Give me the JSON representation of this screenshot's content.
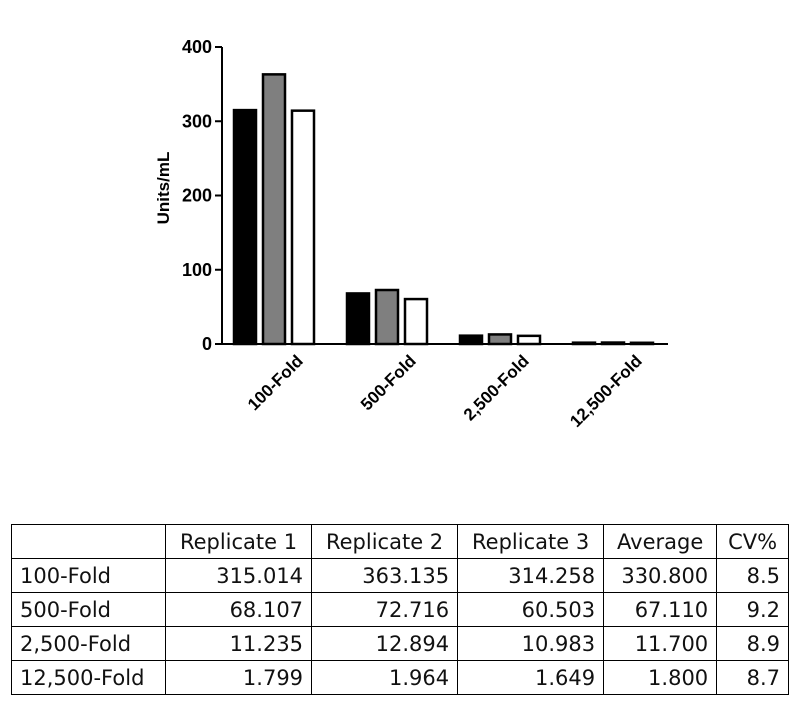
{
  "chart_data": {
    "type": "bar",
    "ylabel": "Units/mL",
    "ylim": [
      0,
      400
    ],
    "yticks": [
      0,
      100,
      200,
      300,
      400
    ],
    "categories": [
      "100-Fold",
      "500-Fold",
      "2,500-Fold",
      "12,500-Fold"
    ],
    "series": [
      {
        "values": [
          315.014,
          68.107,
          11.235,
          1.799
        ],
        "color": "#000000"
      },
      {
        "values": [
          363.135,
          72.716,
          12.894,
          1.964
        ],
        "color": "#7f7f7f"
      },
      {
        "values": [
          314.258,
          60.503,
          10.983,
          1.649
        ],
        "color": "#ffffff"
      }
    ],
    "grid": false,
    "legend": "none"
  },
  "table": {
    "headers": [
      "",
      "Replicate 1",
      "Replicate 2",
      "Replicate 3",
      "Average",
      "CV%"
    ],
    "rows": [
      [
        "100-Fold",
        "315.014",
        "363.135",
        "314.258",
        "330.800",
        "8.5"
      ],
      [
        "500-Fold",
        "68.107",
        "72.716",
        "60.503",
        "67.110",
        "9.2"
      ],
      [
        "2,500-Fold",
        "11.235",
        "12.894",
        "10.983",
        "11.700",
        "8.9"
      ],
      [
        "12,500-Fold",
        "1.799",
        "1.964",
        "1.649",
        "1.800",
        "8.7"
      ]
    ]
  }
}
